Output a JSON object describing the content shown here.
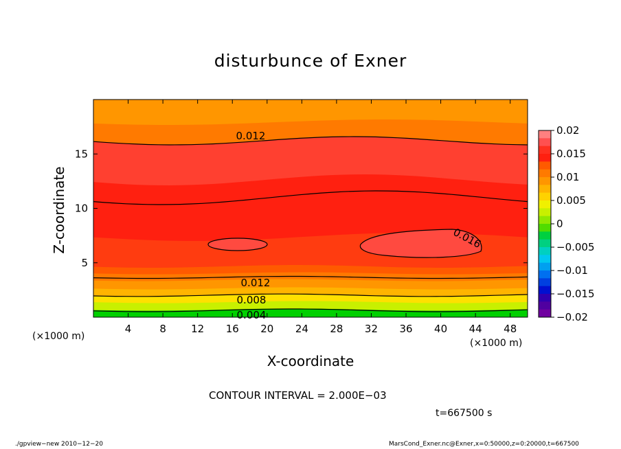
{
  "chart_data": {
    "type": "contour",
    "title": "disturbunce of Exner",
    "xlabel": "X-coordinate",
    "ylabel": "Z-coordinate",
    "x_unit": "(×1000 m)",
    "xlim": [
      0,
      50
    ],
    "ylim": [
      0,
      20
    ],
    "x_ticks": [
      "4",
      "8",
      "12",
      "16",
      "20",
      "24",
      "28",
      "32",
      "36",
      "40",
      "44",
      "48"
    ],
    "y_ticks": [
      "5",
      "10",
      "15"
    ],
    "contour_labels": [
      "0.012",
      "0.016",
      "0.012",
      "0.008",
      "0.004"
    ],
    "colorbar": {
      "ticks": [
        "0.02",
        "0.015",
        "0.01",
        "0.005",
        "0",
        "−0.005",
        "−0.01",
        "−0.015",
        "−0.02"
      ],
      "colors": [
        "#ff8080",
        "#ff5050",
        "#ff3020",
        "#ff2010",
        "#ff5a00",
        "#ff7a00",
        "#ff9600",
        "#ffb400",
        "#ffd200",
        "#f0f000",
        "#c8f000",
        "#90e800",
        "#50dc00",
        "#00d040",
        "#00d080",
        "#00d0c0",
        "#00c8f0",
        "#00a0f0",
        "#0070f0",
        "#0040e0",
        "#0010d0",
        "#3000b0",
        "#5000a0",
        "#7000a0"
      ]
    },
    "band_colors": [
      "#00d000",
      "#70e000",
      "#c8f000",
      "#ffe000",
      "#ffb400",
      "#ff9600",
      "#ff7800",
      "#ff5a00",
      "#ff3c10",
      "#ff2010",
      "#ff4030",
      "#ff7a00",
      "#ff9600"
    ]
  },
  "contour_interval": "CONTOUR INTERVAL = 2.000E−03",
  "time_label": "t=667500 s",
  "footer_left": "./gpview−new  2010−12−20",
  "footer_right": "MarsCond_Exner.nc@Exner,x=0:50000,z=0:20000,t=667500"
}
